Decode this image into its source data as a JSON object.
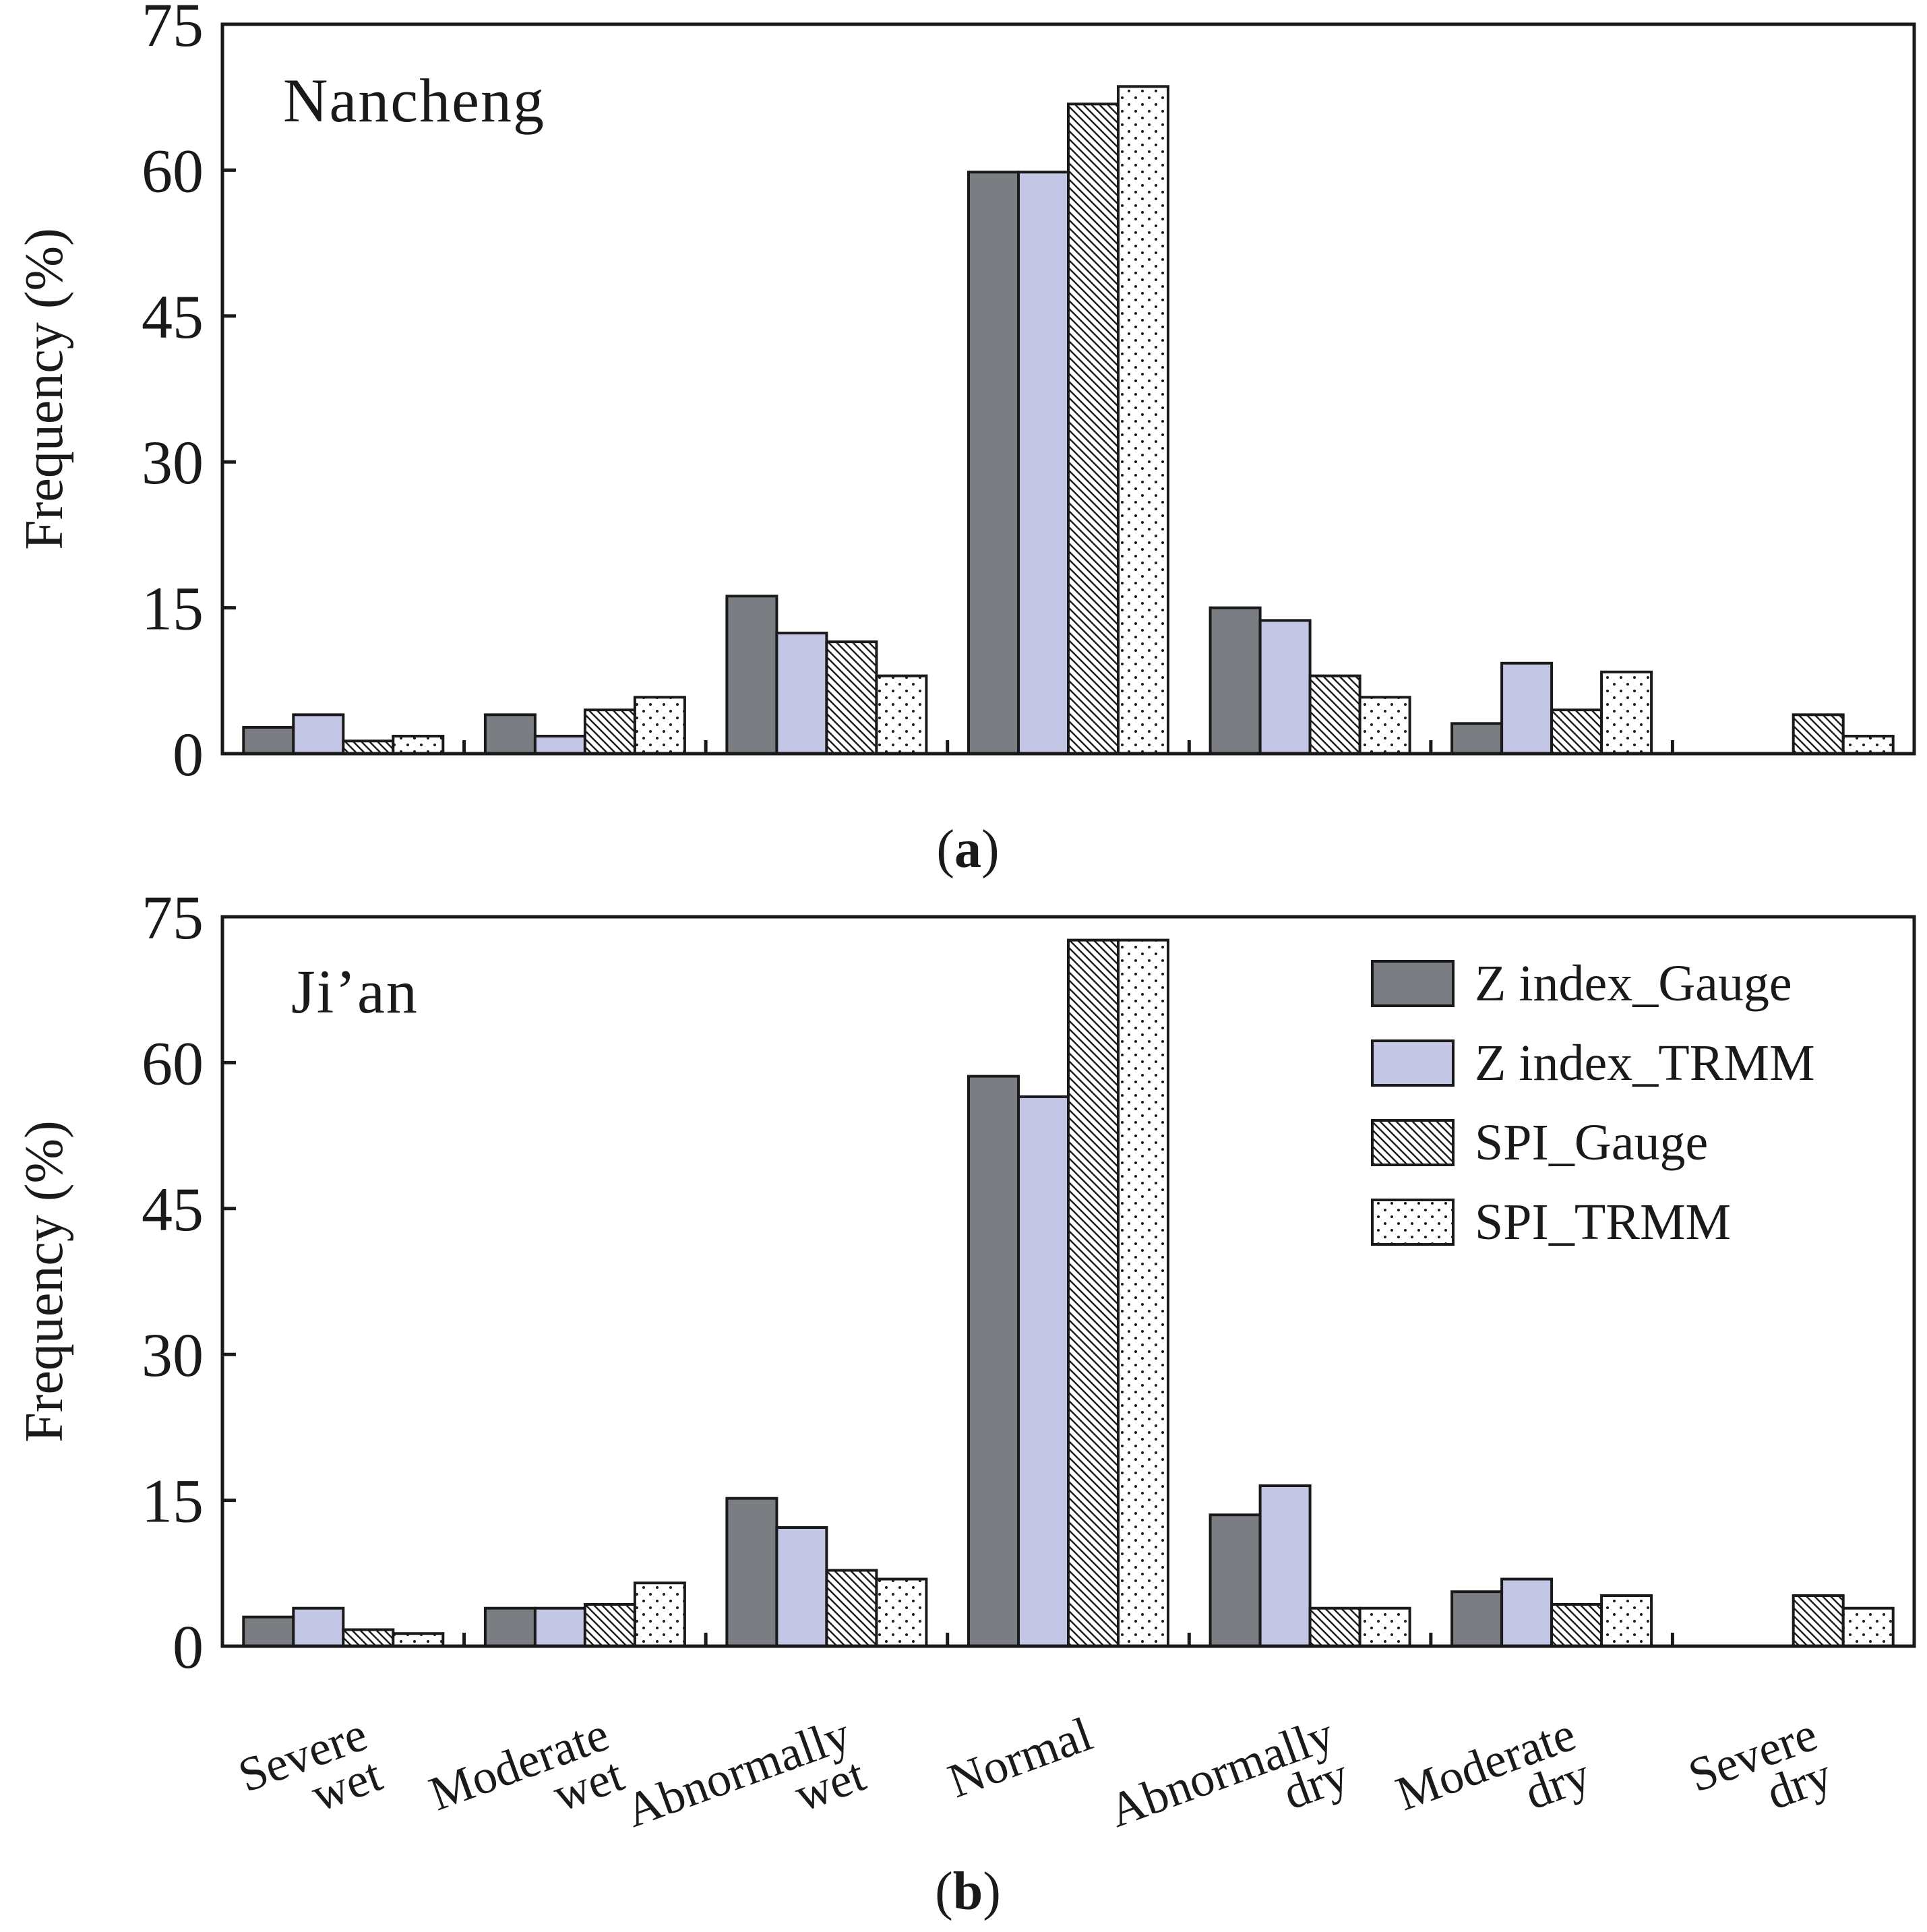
{
  "figure": {
    "ylabel": "Frequency (%)",
    "legend": [
      "Z index_Gauge",
      "Z index_TRMM",
      "SPI_Gauge",
      "SPI_TRMM"
    ],
    "category_lines": [
      [
        "Severe",
        "wet"
      ],
      [
        "Moderate",
        "wet"
      ],
      [
        "Abnormally",
        "wet"
      ],
      [
        "Normal"
      ],
      [
        "Abnormally",
        "dry"
      ],
      [
        "Moderate",
        "dry"
      ],
      [
        "Severe",
        "dry"
      ]
    ],
    "series_colors": [
      "#7a7e82",
      "#c3c6e4",
      "hatch",
      "dots"
    ]
  },
  "chart_data": [
    {
      "type": "bar",
      "panel": "a",
      "panel_label": "(a)",
      "station": "Nancheng",
      "title": "Nancheng",
      "ylabel": "Frequency (%)",
      "ylim": [
        0,
        75
      ],
      "yticks": [
        0,
        15,
        30,
        45,
        60,
        75
      ],
      "categories": [
        "Severe wet",
        "Moderate wet",
        "Abnormally wet",
        "Normal",
        "Abnormally dry",
        "Moderate dry",
        "Severe dry"
      ],
      "series": [
        {
          "name": "Z index_Gauge",
          "values": [
            2.7,
            4.0,
            16.2,
            59.8,
            15.0,
            3.1,
            0
          ]
        },
        {
          "name": "Z index_TRMM",
          "values": [
            4.0,
            1.8,
            12.4,
            59.8,
            13.7,
            9.3,
            0
          ]
        },
        {
          "name": "SPI_Gauge",
          "values": [
            1.3,
            4.5,
            11.5,
            66.8,
            8.0,
            4.5,
            4.0
          ]
        },
        {
          "name": "SPI_TRMM",
          "values": [
            1.8,
            5.8,
            8.0,
            68.6,
            5.8,
            8.4,
            1.8
          ]
        }
      ]
    },
    {
      "type": "bar",
      "panel": "b",
      "panel_label": "(b)",
      "station": "Ji’an",
      "title": "Ji’an",
      "ylabel": "Frequency (%)",
      "ylim": [
        0,
        75
      ],
      "yticks": [
        0,
        15,
        30,
        45,
        60,
        75
      ],
      "categories": [
        "Severe wet",
        "Moderate wet",
        "Abnormally wet",
        "Normal",
        "Abnormally dry",
        "Moderate dry",
        "Severe dry"
      ],
      "legend_position": "top-right",
      "series": [
        {
          "name": "Z index_Gauge",
          "values": [
            3.0,
            3.9,
            15.2,
            58.6,
            13.5,
            5.6,
            0
          ]
        },
        {
          "name": "Z index_TRMM",
          "values": [
            3.9,
            3.9,
            12.2,
            56.5,
            16.5,
            6.9,
            0
          ]
        },
        {
          "name": "SPI_Gauge",
          "values": [
            1.7,
            4.3,
            7.8,
            72.6,
            3.9,
            4.3,
            5.2
          ]
        },
        {
          "name": "SPI_TRMM",
          "values": [
            1.3,
            6.5,
            6.9,
            72.6,
            3.9,
            5.2,
            3.9
          ]
        }
      ]
    }
  ]
}
